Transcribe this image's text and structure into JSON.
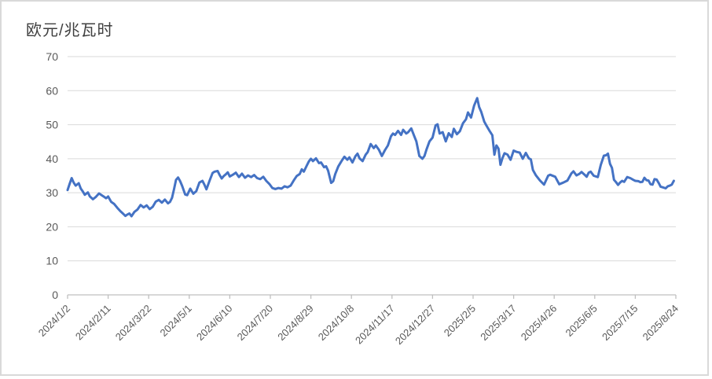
{
  "title": "欧元/兆瓦时",
  "chart_data": {
    "type": "line",
    "title": "欧元/兆瓦时",
    "ylabel": "",
    "xlabel": "",
    "ylim": [
      0,
      70
    ],
    "y_ticks": [
      0,
      10,
      20,
      30,
      40,
      50,
      60,
      70
    ],
    "x_tick_labels": [
      "2024/1/2",
      "2024/2/11",
      "2024/3/22",
      "2024/5/1",
      "2024/6/10",
      "2024/7/20",
      "2024/8/29",
      "2024/10/8",
      "2024/11/17",
      "2024/12/27",
      "2025/2/5",
      "2025/3/17",
      "2025/4/26",
      "2025/6/5",
      "2025/7/15",
      "2025/8/24"
    ],
    "x_tick_days": [
      0,
      40,
      80,
      120,
      160,
      200,
      240,
      280,
      320,
      360,
      400,
      440,
      480,
      520,
      560,
      600
    ],
    "x_unit": "days since 2024/1/2",
    "grid": true,
    "legend": "none",
    "line_color": "#4472C4",
    "grid_color": "#D9D9D9",
    "axis_color": "#BFBFBF",
    "tick_label_color": "#595959",
    "series": [
      {
        "name": "欧元/兆瓦时",
        "points": [
          [
            0,
            30.8
          ],
          [
            2,
            32.6
          ],
          [
            4,
            34.3
          ],
          [
            6,
            33.0
          ],
          [
            8,
            32.1
          ],
          [
            11,
            32.8
          ],
          [
            13,
            31.2
          ],
          [
            15,
            30.4
          ],
          [
            17,
            29.4
          ],
          [
            20,
            30.1
          ],
          [
            22,
            28.9
          ],
          [
            25,
            28.1
          ],
          [
            28,
            28.8
          ],
          [
            31,
            29.8
          ],
          [
            34,
            29.2
          ],
          [
            36,
            28.8
          ],
          [
            38,
            28.4
          ],
          [
            40,
            28.9
          ],
          [
            43,
            27.3
          ],
          [
            46,
            26.7
          ],
          [
            49,
            25.6
          ],
          [
            52,
            24.6
          ],
          [
            55,
            23.8
          ],
          [
            57,
            23.2
          ],
          [
            59,
            23.6
          ],
          [
            61,
            23.9
          ],
          [
            63,
            23.1
          ],
          [
            66,
            24.4
          ],
          [
            69,
            25.1
          ],
          [
            72,
            26.4
          ],
          [
            75,
            25.7
          ],
          [
            78,
            26.3
          ],
          [
            81,
            25.2
          ],
          [
            84,
            25.9
          ],
          [
            87,
            27.4
          ],
          [
            90,
            27.9
          ],
          [
            93,
            27.1
          ],
          [
            96,
            28.0
          ],
          [
            99,
            26.9
          ],
          [
            101,
            27.3
          ],
          [
            103,
            28.5
          ],
          [
            105,
            31.0
          ],
          [
            107,
            33.8
          ],
          [
            109,
            34.5
          ],
          [
            111,
            33.4
          ],
          [
            113,
            32.0
          ],
          [
            116,
            29.5
          ],
          [
            118,
            29.3
          ],
          [
            121,
            31.2
          ],
          [
            124,
            29.7
          ],
          [
            127,
            30.5
          ],
          [
            130,
            33.0
          ],
          [
            133,
            33.5
          ],
          [
            135,
            32.4
          ],
          [
            137,
            31.0
          ],
          [
            140,
            33.5
          ],
          [
            143,
            35.8
          ],
          [
            145,
            36.2
          ],
          [
            148,
            36.4
          ],
          [
            150,
            35.2
          ],
          [
            152,
            34.2
          ],
          [
            154,
            34.9
          ],
          [
            156,
            35.4
          ],
          [
            158,
            36.0
          ],
          [
            160,
            34.8
          ],
          [
            163,
            35.3
          ],
          [
            166,
            35.9
          ],
          [
            169,
            34.6
          ],
          [
            172,
            35.6
          ],
          [
            175,
            34.4
          ],
          [
            178,
            35.1
          ],
          [
            181,
            34.6
          ],
          [
            184,
            35.2
          ],
          [
            187,
            34.3
          ],
          [
            190,
            34.0
          ],
          [
            193,
            34.7
          ],
          [
            196,
            33.5
          ],
          [
            199,
            32.6
          ],
          [
            202,
            31.4
          ],
          [
            205,
            31.1
          ],
          [
            208,
            31.4
          ],
          [
            211,
            31.2
          ],
          [
            214,
            31.9
          ],
          [
            217,
            31.6
          ],
          [
            220,
            32.1
          ],
          [
            223,
            33.6
          ],
          [
            226,
            34.9
          ],
          [
            229,
            35.5
          ],
          [
            231,
            36.9
          ],
          [
            233,
            36.2
          ],
          [
            236,
            38.0
          ],
          [
            238,
            39.2
          ],
          [
            240,
            40.0
          ],
          [
            242,
            39.3
          ],
          [
            245,
            40.1
          ],
          [
            248,
            38.7
          ],
          [
            250,
            38.9
          ],
          [
            253,
            37.5
          ],
          [
            255,
            37.8
          ],
          [
            257,
            36.5
          ],
          [
            260,
            32.9
          ],
          [
            262,
            33.4
          ],
          [
            264,
            35.5
          ],
          [
            267,
            37.7
          ],
          [
            270,
            39.2
          ],
          [
            273,
            40.6
          ],
          [
            276,
            39.7
          ],
          [
            278,
            40.4
          ],
          [
            281,
            38.9
          ],
          [
            284,
            40.8
          ],
          [
            286,
            41.5
          ],
          [
            288,
            40.1
          ],
          [
            291,
            39.3
          ],
          [
            294,
            41.2
          ],
          [
            296,
            41.9
          ],
          [
            299,
            44.3
          ],
          [
            302,
            43.1
          ],
          [
            304,
            43.9
          ],
          [
            307,
            42.7
          ],
          [
            310,
            40.8
          ],
          [
            313,
            42.5
          ],
          [
            316,
            43.9
          ],
          [
            319,
            46.6
          ],
          [
            321,
            47.4
          ],
          [
            323,
            47.0
          ],
          [
            326,
            48.2
          ],
          [
            329,
            47.0
          ],
          [
            331,
            48.5
          ],
          [
            334,
            47.4
          ],
          [
            336,
            47.8
          ],
          [
            339,
            48.9
          ],
          [
            342,
            46.6
          ],
          [
            344,
            45.1
          ],
          [
            347,
            40.8
          ],
          [
            350,
            40.0
          ],
          [
            352,
            40.8
          ],
          [
            354,
            42.7
          ],
          [
            357,
            45.1
          ],
          [
            360,
            46.2
          ],
          [
            363,
            49.8
          ],
          [
            365,
            50.1
          ],
          [
            367,
            47.4
          ],
          [
            370,
            47.8
          ],
          [
            373,
            45.1
          ],
          [
            376,
            47.5
          ],
          [
            379,
            46.4
          ],
          [
            381,
            48.8
          ],
          [
            384,
            47.2
          ],
          [
            387,
            48.1
          ],
          [
            390,
            50.4
          ],
          [
            393,
            51.6
          ],
          [
            395,
            53.6
          ],
          [
            398,
            52.1
          ],
          [
            401,
            55.6
          ],
          [
            404,
            57.8
          ],
          [
            406,
            55.2
          ],
          [
            408,
            53.8
          ],
          [
            411,
            50.9
          ],
          [
            413,
            49.8
          ],
          [
            416,
            48.3
          ],
          [
            419,
            46.9
          ],
          [
            421,
            41.2
          ],
          [
            423,
            43.9
          ],
          [
            425,
            43.0
          ],
          [
            427,
            38.2
          ],
          [
            429,
            40.2
          ],
          [
            431,
            41.6
          ],
          [
            434,
            41.2
          ],
          [
            437,
            39.7
          ],
          [
            440,
            42.4
          ],
          [
            443,
            42.0
          ],
          [
            446,
            41.8
          ],
          [
            449,
            40.0
          ],
          [
            452,
            41.7
          ],
          [
            455,
            40.1
          ],
          [
            457,
            39.8
          ],
          [
            459,
            36.7
          ],
          [
            462,
            35.1
          ],
          [
            466,
            33.6
          ],
          [
            470,
            32.4
          ],
          [
            474,
            35.0
          ],
          [
            476,
            35.3
          ],
          [
            481,
            34.7
          ],
          [
            485,
            32.5
          ],
          [
            489,
            33.0
          ],
          [
            493,
            33.6
          ],
          [
            497,
            35.7
          ],
          [
            499,
            36.3
          ],
          [
            502,
            35.1
          ],
          [
            505,
            35.6
          ],
          [
            507,
            36.1
          ],
          [
            510,
            35.3
          ],
          [
            512,
            34.7
          ],
          [
            514,
            35.9
          ],
          [
            516,
            36.2
          ],
          [
            519,
            35.0
          ],
          [
            523,
            34.6
          ],
          [
            526,
            38.2
          ],
          [
            529,
            40.9
          ],
          [
            531,
            41.0
          ],
          [
            533,
            41.5
          ],
          [
            535,
            38.5
          ],
          [
            537,
            37.3
          ],
          [
            539,
            33.8
          ],
          [
            541,
            33.1
          ],
          [
            543,
            32.3
          ],
          [
            545,
            33.0
          ],
          [
            547,
            33.5
          ],
          [
            549,
            33.2
          ],
          [
            552,
            34.6
          ],
          [
            555,
            34.3
          ],
          [
            558,
            33.8
          ],
          [
            560,
            33.5
          ],
          [
            563,
            33.4
          ],
          [
            565,
            33.1
          ],
          [
            567,
            33.2
          ],
          [
            569,
            34.4
          ],
          [
            571,
            33.7
          ],
          [
            573,
            33.6
          ],
          [
            575,
            32.5
          ],
          [
            577,
            32.4
          ],
          [
            579,
            34.0
          ],
          [
            581,
            33.9
          ],
          [
            583,
            32.9
          ],
          [
            585,
            31.8
          ],
          [
            587,
            31.6
          ],
          [
            590,
            31.3
          ],
          [
            592,
            31.9
          ],
          [
            594,
            32.1
          ],
          [
            596,
            32.4
          ],
          [
            598,
            33.5
          ]
        ]
      }
    ]
  }
}
